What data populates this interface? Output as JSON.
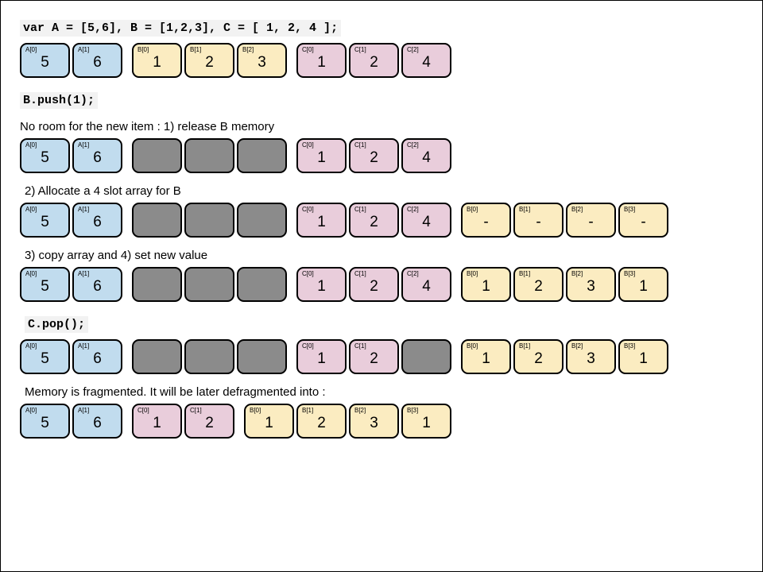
{
  "colors": {
    "A": "#c1dcee",
    "B": "#fbecc1",
    "C": "#e9cddb",
    "free": "#8b8b8b",
    "border": "#000000",
    "code_bg": "#f2f2f2",
    "page_bg": "#ffffff"
  },
  "cell": {
    "width": 63,
    "height": 44,
    "radius": 9,
    "border_width": 2,
    "tag_fontsize": 8,
    "val_fontsize": 19
  },
  "texts": {
    "code1": "var A = [5,6],  B = [1,2,3], C = [ 1, 2, 4 ];",
    "code2": "B.push(1);",
    "cap1": "No room for the new item : 1) release B memory",
    "cap2": "2) Allocate a 4 slot array for B",
    "cap3": "3) copy array and 4) set new value",
    "code3": "C.pop();",
    "cap4": "Memory is fragmented. It will be later defragmented into :"
  },
  "rows": [
    [
      {
        "tag": "A[0]",
        "val": "5",
        "c": "A"
      },
      {
        "tag": "A[1]",
        "val": "6",
        "c": "A"
      },
      {
        "gap": true
      },
      {
        "tag": "B[0]",
        "val": "1",
        "c": "B"
      },
      {
        "tag": "B[1]",
        "val": "2",
        "c": "B"
      },
      {
        "tag": "B[2]",
        "val": "3",
        "c": "B"
      },
      {
        "gap": true
      },
      {
        "tag": "C[0]",
        "val": "1",
        "c": "C"
      },
      {
        "tag": "C[1]",
        "val": "2",
        "c": "C"
      },
      {
        "tag": "C[2]",
        "val": "4",
        "c": "C"
      }
    ],
    [
      {
        "tag": "A[0]",
        "val": "5",
        "c": "A"
      },
      {
        "tag": "A[1]",
        "val": "6",
        "c": "A"
      },
      {
        "gap": true
      },
      {
        "c": "free"
      },
      {
        "c": "free"
      },
      {
        "c": "free"
      },
      {
        "gap": true
      },
      {
        "tag": "C[0]",
        "val": "1",
        "c": "C"
      },
      {
        "tag": "C[1]",
        "val": "2",
        "c": "C"
      },
      {
        "tag": "C[2]",
        "val": "4",
        "c": "C"
      }
    ],
    [
      {
        "tag": "A[0]",
        "val": "5",
        "c": "A"
      },
      {
        "tag": "A[1]",
        "val": "6",
        "c": "A"
      },
      {
        "gap": true
      },
      {
        "c": "free"
      },
      {
        "c": "free"
      },
      {
        "c": "free"
      },
      {
        "gap": true
      },
      {
        "tag": "C[0]",
        "val": "1",
        "c": "C"
      },
      {
        "tag": "C[1]",
        "val": "2",
        "c": "C"
      },
      {
        "tag": "C[2]",
        "val": "4",
        "c": "C"
      },
      {
        "gap": true
      },
      {
        "tag": "B[0]",
        "val": "-",
        "c": "B"
      },
      {
        "tag": "B[1]",
        "val": "-",
        "c": "B"
      },
      {
        "tag": "B[2]",
        "val": "-",
        "c": "B"
      },
      {
        "tag": "B[3]",
        "val": "-",
        "c": "B"
      }
    ],
    [
      {
        "tag": "A[0]",
        "val": "5",
        "c": "A"
      },
      {
        "tag": "A[1]",
        "val": "6",
        "c": "A"
      },
      {
        "gap": true
      },
      {
        "c": "free"
      },
      {
        "c": "free"
      },
      {
        "c": "free"
      },
      {
        "gap": true
      },
      {
        "tag": "C[0]",
        "val": "1",
        "c": "C"
      },
      {
        "tag": "C[1]",
        "val": "2",
        "c": "C"
      },
      {
        "tag": "C[2]",
        "val": "4",
        "c": "C"
      },
      {
        "gap": true
      },
      {
        "tag": "B[0]",
        "val": "1",
        "c": "B"
      },
      {
        "tag": "B[1]",
        "val": "2",
        "c": "B"
      },
      {
        "tag": "B[2]",
        "val": "3",
        "c": "B"
      },
      {
        "tag": "B[3]",
        "val": "1",
        "c": "B"
      }
    ],
    [
      {
        "tag": "A[0]",
        "val": "5",
        "c": "A"
      },
      {
        "tag": "A[1]",
        "val": "6",
        "c": "A"
      },
      {
        "gap": true
      },
      {
        "c": "free"
      },
      {
        "c": "free"
      },
      {
        "c": "free"
      },
      {
        "gap": true
      },
      {
        "tag": "C[0]",
        "val": "1",
        "c": "C"
      },
      {
        "tag": "C[1]",
        "val": "2",
        "c": "C"
      },
      {
        "c": "free"
      },
      {
        "gap": true
      },
      {
        "tag": "B[0]",
        "val": "1",
        "c": "B"
      },
      {
        "tag": "B[1]",
        "val": "2",
        "c": "B"
      },
      {
        "tag": "B[2]",
        "val": "3",
        "c": "B"
      },
      {
        "tag": "B[3]",
        "val": "1",
        "c": "B"
      }
    ],
    [
      {
        "tag": "A[0]",
        "val": "5",
        "c": "A"
      },
      {
        "tag": "A[1]",
        "val": "6",
        "c": "A"
      },
      {
        "gap": true
      },
      {
        "tag": "C[0]",
        "val": "1",
        "c": "C"
      },
      {
        "tag": "C[1]",
        "val": "2",
        "c": "C"
      },
      {
        "gap": true
      },
      {
        "tag": "B[0]",
        "val": "1",
        "c": "B"
      },
      {
        "tag": "B[1]",
        "val": "2",
        "c": "B"
      },
      {
        "tag": "B[2]",
        "val": "3",
        "c": "B"
      },
      {
        "tag": "B[3]",
        "val": "1",
        "c": "B"
      }
    ]
  ]
}
